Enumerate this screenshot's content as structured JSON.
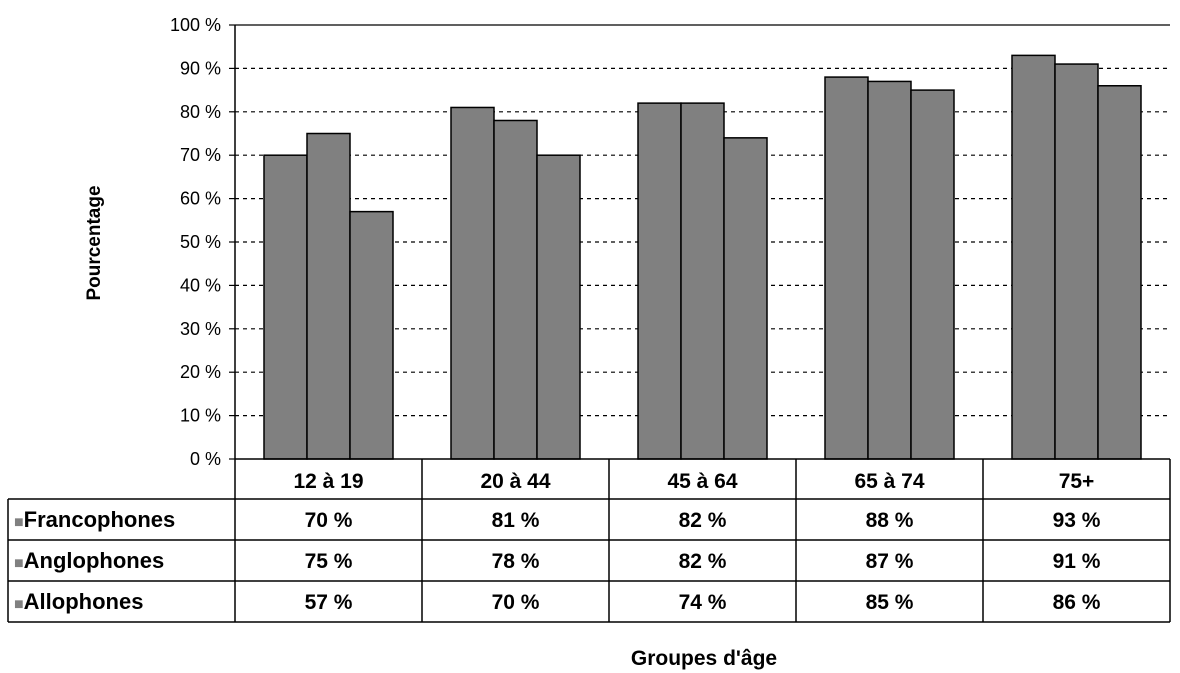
{
  "chart_data": {
    "type": "bar",
    "title": "",
    "xlabel": "Groupes d'âge",
    "ylabel": "Pourcentage",
    "ylim": [
      0,
      100
    ],
    "yticks": [
      "0 %",
      "10 %",
      "20 %",
      "30 %",
      "40 %",
      "50 %",
      "60 %",
      "70 %",
      "80 %",
      "90 %",
      "100 %"
    ],
    "grid": "horizontal dashed",
    "categories": [
      "12 à 19",
      "20 à 44",
      "45 à 64",
      "65 à 74",
      "75+"
    ],
    "series": [
      {
        "name": "Francophones",
        "values": [
          70,
          81,
          82,
          88,
          93
        ],
        "labels": [
          "70 %",
          "81 %",
          "82 %",
          "88 %",
          "93 %"
        ]
      },
      {
        "name": "Anglophones",
        "values": [
          75,
          78,
          82,
          87,
          91
        ],
        "labels": [
          "75 %",
          "78 %",
          "82 %",
          "87 %",
          "91 %"
        ]
      },
      {
        "name": "Allophones",
        "values": [
          57,
          70,
          74,
          85,
          86
        ],
        "labels": [
          "57 %",
          "70 %",
          "74 %",
          "85 %",
          "86 %"
        ]
      }
    ],
    "bar_color": "#808080",
    "legend_marker": "■",
    "legend": "data-table"
  }
}
